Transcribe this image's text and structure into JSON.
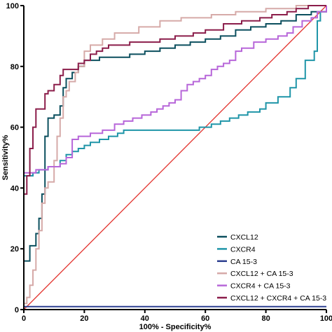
{
  "chart_data": {
    "type": "line",
    "title": "",
    "xlabel": "100% - Specificity%",
    "ylabel": "Sensitivity%",
    "xlim": [
      0,
      100
    ],
    "ylim": [
      0,
      100
    ],
    "xticks": [
      "0",
      "20",
      "40",
      "60",
      "80",
      "100"
    ],
    "yticks": [
      "0",
      "20",
      "40",
      "60",
      "80",
      "100"
    ],
    "grid": false,
    "legend_position": "bottom-right",
    "reference_line": {
      "color": "#e3342f",
      "from": [
        0,
        0
      ],
      "to": [
        100,
        100
      ]
    },
    "series": [
      {
        "name": "CXCL12",
        "color": "#0b4f5e",
        "points": [
          [
            0,
            0
          ],
          [
            0,
            16
          ],
          [
            2,
            16
          ],
          [
            2,
            21
          ],
          [
            4,
            21
          ],
          [
            4,
            25
          ],
          [
            5,
            25
          ],
          [
            5,
            30
          ],
          [
            6,
            30
          ],
          [
            6,
            38
          ],
          [
            7,
            38
          ],
          [
            7,
            57
          ],
          [
            8,
            57
          ],
          [
            8,
            63
          ],
          [
            10,
            63
          ],
          [
            10,
            64
          ],
          [
            12,
            64
          ],
          [
            12,
            67
          ],
          [
            13,
            67
          ],
          [
            13,
            73
          ],
          [
            14,
            73
          ],
          [
            14,
            76
          ],
          [
            16,
            76
          ],
          [
            16,
            78
          ],
          [
            18,
            78
          ],
          [
            18,
            80
          ],
          [
            20,
            80
          ],
          [
            20,
            82
          ],
          [
            25,
            82
          ],
          [
            25,
            83
          ],
          [
            35,
            83
          ],
          [
            35,
            84
          ],
          [
            40,
            84
          ],
          [
            40,
            85
          ],
          [
            45,
            85
          ],
          [
            45,
            86
          ],
          [
            50,
            86
          ],
          [
            50,
            87
          ],
          [
            55,
            87
          ],
          [
            55,
            88
          ],
          [
            60,
            88
          ],
          [
            60,
            89
          ],
          [
            65,
            89
          ],
          [
            65,
            90
          ],
          [
            70,
            90
          ],
          [
            70,
            92
          ],
          [
            75,
            92
          ],
          [
            75,
            93
          ],
          [
            80,
            93
          ],
          [
            80,
            94
          ],
          [
            85,
            94
          ],
          [
            85,
            95
          ],
          [
            90,
            95
          ],
          [
            90,
            97
          ],
          [
            95,
            97
          ],
          [
            95,
            98
          ],
          [
            100,
            98
          ],
          [
            100,
            100
          ]
        ]
      },
      {
        "name": "CXCR4",
        "color": "#1f95a8",
        "points": [
          [
            0,
            0
          ],
          [
            0,
            44
          ],
          [
            3,
            44
          ],
          [
            3,
            45
          ],
          [
            5,
            45
          ],
          [
            5,
            46
          ],
          [
            8,
            46
          ],
          [
            8,
            47
          ],
          [
            12,
            47
          ],
          [
            12,
            49
          ],
          [
            14,
            49
          ],
          [
            14,
            51
          ],
          [
            16,
            51
          ],
          [
            16,
            52
          ],
          [
            18,
            52
          ],
          [
            18,
            53
          ],
          [
            20,
            53
          ],
          [
            20,
            54
          ],
          [
            22,
            54
          ],
          [
            22,
            55
          ],
          [
            25,
            55
          ],
          [
            25,
            56
          ],
          [
            28,
            56
          ],
          [
            28,
            57
          ],
          [
            31,
            57
          ],
          [
            31,
            58
          ],
          [
            33,
            58
          ],
          [
            33,
            59
          ],
          [
            58,
            59
          ],
          [
            58,
            60
          ],
          [
            62,
            60
          ],
          [
            62,
            61
          ],
          [
            65,
            61
          ],
          [
            65,
            62
          ],
          [
            68,
            62
          ],
          [
            68,
            63
          ],
          [
            71,
            63
          ],
          [
            71,
            64
          ],
          [
            74,
            64
          ],
          [
            74,
            65
          ],
          [
            78,
            65
          ],
          [
            78,
            66
          ],
          [
            80,
            66
          ],
          [
            80,
            68
          ],
          [
            84,
            68
          ],
          [
            84,
            70
          ],
          [
            88,
            70
          ],
          [
            88,
            73
          ],
          [
            90,
            73
          ],
          [
            90,
            76
          ],
          [
            93,
            76
          ],
          [
            93,
            82
          ],
          [
            96,
            82
          ],
          [
            96,
            85
          ],
          [
            97,
            85
          ],
          [
            97,
            95
          ],
          [
            98,
            95
          ],
          [
            98,
            98
          ],
          [
            100,
            98
          ],
          [
            100,
            100
          ]
        ]
      },
      {
        "name": "CA 15-3",
        "color": "#2c3e8f",
        "points": [
          [
            0,
            0
          ],
          [
            0,
            1
          ],
          [
            100,
            1
          ]
        ]
      },
      {
        "name": "CXCL12 + CA 15-3",
        "color": "#d6aaa8",
        "points": [
          [
            0,
            0
          ],
          [
            0,
            2
          ],
          [
            1,
            2
          ],
          [
            1,
            4
          ],
          [
            2,
            4
          ],
          [
            2,
            8
          ],
          [
            3,
            8
          ],
          [
            3,
            13
          ],
          [
            4,
            13
          ],
          [
            4,
            20
          ],
          [
            5,
            20
          ],
          [
            5,
            26
          ],
          [
            6,
            26
          ],
          [
            6,
            35
          ],
          [
            7,
            35
          ],
          [
            7,
            40
          ],
          [
            8,
            40
          ],
          [
            8,
            42
          ],
          [
            10,
            42
          ],
          [
            10,
            49
          ],
          [
            11,
            49
          ],
          [
            11,
            57
          ],
          [
            12,
            57
          ],
          [
            12,
            63
          ],
          [
            13,
            63
          ],
          [
            13,
            70
          ],
          [
            14,
            70
          ],
          [
            14,
            72
          ],
          [
            15,
            72
          ],
          [
            15,
            75
          ],
          [
            17,
            75
          ],
          [
            17,
            78
          ],
          [
            18,
            78
          ],
          [
            18,
            80
          ],
          [
            20,
            80
          ],
          [
            20,
            85
          ],
          [
            22,
            85
          ],
          [
            22,
            87
          ],
          [
            26,
            87
          ],
          [
            26,
            89
          ],
          [
            30,
            89
          ],
          [
            30,
            91
          ],
          [
            38,
            91
          ],
          [
            38,
            93
          ],
          [
            45,
            93
          ],
          [
            45,
            95
          ],
          [
            52,
            95
          ],
          [
            52,
            96
          ],
          [
            62,
            96
          ],
          [
            62,
            97
          ],
          [
            70,
            97
          ],
          [
            70,
            98
          ],
          [
            80,
            98
          ],
          [
            80,
            99
          ],
          [
            90,
            99
          ],
          [
            90,
            100
          ],
          [
            100,
            100
          ]
        ]
      },
      {
        "name": "CXCR4 + CA 15-3",
        "color": "#b766d9",
        "points": [
          [
            0,
            0
          ],
          [
            0,
            45
          ],
          [
            4,
            45
          ],
          [
            4,
            46
          ],
          [
            8,
            46
          ],
          [
            8,
            47
          ],
          [
            12,
            47
          ],
          [
            12,
            48
          ],
          [
            14,
            48
          ],
          [
            14,
            50
          ],
          [
            16,
            50
          ],
          [
            16,
            56
          ],
          [
            18,
            56
          ],
          [
            18,
            57
          ],
          [
            22,
            57
          ],
          [
            22,
            58
          ],
          [
            26,
            58
          ],
          [
            26,
            59
          ],
          [
            30,
            59
          ],
          [
            30,
            61
          ],
          [
            33,
            61
          ],
          [
            33,
            62
          ],
          [
            36,
            62
          ],
          [
            36,
            63
          ],
          [
            39,
            63
          ],
          [
            39,
            64
          ],
          [
            42,
            64
          ],
          [
            42,
            65
          ],
          [
            44,
            65
          ],
          [
            44,
            66
          ],
          [
            46,
            66
          ],
          [
            46,
            67
          ],
          [
            48,
            67
          ],
          [
            48,
            68
          ],
          [
            50,
            68
          ],
          [
            50,
            69
          ],
          [
            52,
            69
          ],
          [
            52,
            72
          ],
          [
            54,
            72
          ],
          [
            54,
            74
          ],
          [
            56,
            74
          ],
          [
            56,
            75
          ],
          [
            58,
            75
          ],
          [
            58,
            76
          ],
          [
            60,
            76
          ],
          [
            60,
            77
          ],
          [
            62,
            77
          ],
          [
            62,
            79
          ],
          [
            64,
            79
          ],
          [
            64,
            80
          ],
          [
            66,
            80
          ],
          [
            66,
            81
          ],
          [
            68,
            81
          ],
          [
            68,
            82
          ],
          [
            70,
            82
          ],
          [
            70,
            85
          ],
          [
            72,
            85
          ],
          [
            72,
            86
          ],
          [
            76,
            86
          ],
          [
            76,
            88
          ],
          [
            80,
            88
          ],
          [
            80,
            89
          ],
          [
            84,
            89
          ],
          [
            84,
            90
          ],
          [
            87,
            90
          ],
          [
            87,
            91
          ],
          [
            89,
            91
          ],
          [
            89,
            93
          ],
          [
            92,
            93
          ],
          [
            92,
            95
          ],
          [
            95,
            95
          ],
          [
            95,
            96
          ],
          [
            97,
            96
          ],
          [
            97,
            98
          ],
          [
            100,
            98
          ],
          [
            100,
            100
          ]
        ]
      },
      {
        "name": "CXCL12 + CXCR4 + CA 15-3",
        "color": "#8b1d4a",
        "points": [
          [
            0,
            0
          ],
          [
            0,
            38
          ],
          [
            1,
            38
          ],
          [
            1,
            44
          ],
          [
            2,
            44
          ],
          [
            2,
            53
          ],
          [
            3,
            53
          ],
          [
            3,
            60
          ],
          [
            4,
            60
          ],
          [
            4,
            66
          ],
          [
            7,
            66
          ],
          [
            7,
            71
          ],
          [
            8,
            71
          ],
          [
            8,
            72
          ],
          [
            10,
            72
          ],
          [
            10,
            74
          ],
          [
            12,
            74
          ],
          [
            12,
            77
          ],
          [
            13,
            77
          ],
          [
            13,
            79
          ],
          [
            18,
            79
          ],
          [
            18,
            81
          ],
          [
            20,
            81
          ],
          [
            20,
            82
          ],
          [
            22,
            82
          ],
          [
            22,
            84
          ],
          [
            24,
            84
          ],
          [
            24,
            85
          ],
          [
            26,
            85
          ],
          [
            26,
            86
          ],
          [
            28,
            86
          ],
          [
            28,
            87
          ],
          [
            35,
            87
          ],
          [
            35,
            88
          ],
          [
            45,
            88
          ],
          [
            45,
            89
          ],
          [
            50,
            89
          ],
          [
            50,
            90
          ],
          [
            56,
            90
          ],
          [
            56,
            91
          ],
          [
            60,
            91
          ],
          [
            60,
            92
          ],
          [
            66,
            92
          ],
          [
            66,
            94
          ],
          [
            72,
            94
          ],
          [
            72,
            95
          ],
          [
            78,
            95
          ],
          [
            78,
            96
          ],
          [
            82,
            96
          ],
          [
            82,
            97
          ],
          [
            87,
            97
          ],
          [
            87,
            98
          ],
          [
            90,
            98
          ],
          [
            90,
            99
          ],
          [
            94,
            99
          ],
          [
            94,
            100
          ],
          [
            100,
            100
          ]
        ]
      }
    ]
  }
}
